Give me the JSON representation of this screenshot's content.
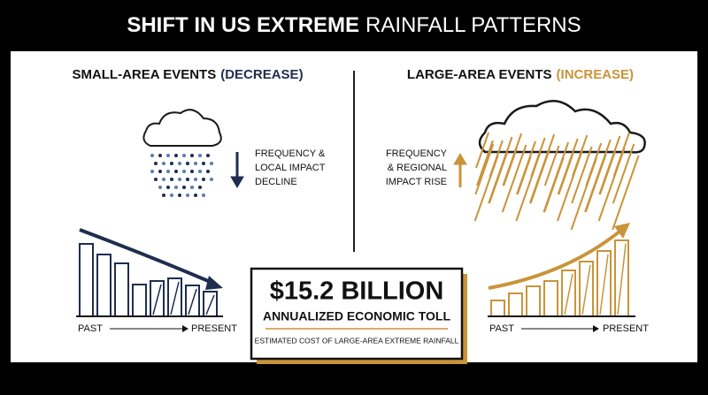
{
  "header": {
    "title_bold": "SHIFT IN US EXTREME",
    "title_light": "RAINFALL PATTERNS"
  },
  "left_panel": {
    "heading": "SMALL-AREA EVENTS",
    "heading_tag": "(DECREASE)",
    "note_lines": [
      "FREQUENCY &",
      "LOCAL IMPACT",
      "DECLINE"
    ],
    "axis_start": "PAST",
    "axis_end": "PRESENT"
  },
  "right_panel": {
    "heading": "LARGE-AREA EVENTS",
    "heading_tag": "(INCREASE)",
    "note_lines": [
      "FREQUENCY",
      "& REGIONAL",
      "IMPACT RISE"
    ],
    "axis_start": "PAST",
    "axis_end": "PRESENT"
  },
  "callout": {
    "amount": "$15.2 BILLION",
    "label": "ANNUALIZED ECONOMIC TOLL",
    "caption": "ESTIMATED COST OF LARGE-AREA EXTREME RAINFALL"
  }
}
